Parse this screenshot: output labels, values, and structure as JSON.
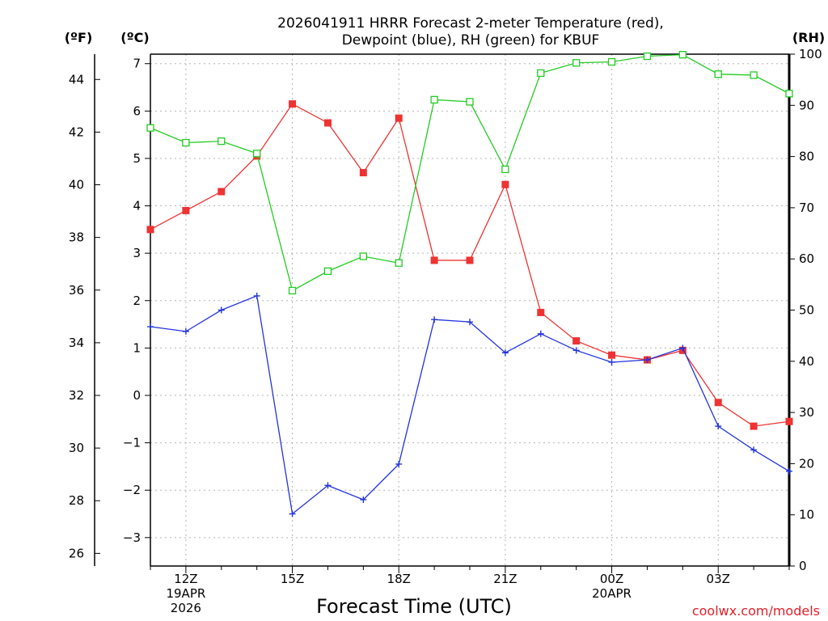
{
  "chart_data": {
    "type": "line",
    "title_line1": "2026041911 HRRR Forecast 2-meter Temperature (red),",
    "title_line2": "Dewpoint (blue), RH (green) for KBUF",
    "xlabel": "Forecast Time (UTC)",
    "credit": "coolwx.com/models",
    "y_left_f": {
      "unit": "(ºF)",
      "ylim": [
        25.52,
        44.96
      ],
      "ticks": [
        26,
        28,
        30,
        32,
        34,
        36,
        38,
        40,
        42,
        44
      ]
    },
    "y_left_c": {
      "unit": "(ºC)",
      "ylim": [
        -3.6,
        7.2
      ],
      "ticks": [
        -3,
        -2,
        -1,
        0,
        1,
        2,
        3,
        4,
        5,
        6,
        7
      ]
    },
    "y_right_rh": {
      "unit": "(RH)",
      "ylim": [
        0,
        100
      ],
      "ticks": [
        0,
        10,
        20,
        30,
        40,
        50,
        60,
        70,
        80,
        90,
        100
      ]
    },
    "x_hours": [
      11,
      12,
      13,
      14,
      15,
      16,
      17,
      18,
      19,
      20,
      21,
      22,
      23,
      24,
      25,
      26,
      27,
      28,
      29
    ],
    "x_ticks": [
      {
        "hour": 12,
        "lines": [
          "12Z",
          "19APR",
          "2026"
        ]
      },
      {
        "hour": 15,
        "lines": [
          "15Z"
        ]
      },
      {
        "hour": 18,
        "lines": [
          "18Z"
        ]
      },
      {
        "hour": 21,
        "lines": [
          "21Z"
        ]
      },
      {
        "hour": 24,
        "lines": [
          "00Z",
          "20APR"
        ]
      },
      {
        "hour": 27,
        "lines": [
          "03Z"
        ]
      }
    ],
    "series": [
      {
        "key": "temperature",
        "color": "#ee3333",
        "marker": "filled-square",
        "values": [
          3.5,
          3.9,
          4.3,
          5.05,
          6.15,
          5.75,
          4.7,
          5.85,
          2.85,
          2.85,
          4.45,
          1.75,
          1.15,
          0.85,
          0.75,
          0.95,
          -0.15,
          -0.65,
          -0.55
        ]
      },
      {
        "key": "dewpoint",
        "color": "#2233dd",
        "marker": "plus",
        "values": [
          1.45,
          1.35,
          1.8,
          2.1,
          -2.5,
          -1.9,
          -2.2,
          -1.45,
          1.6,
          1.55,
          0.9,
          1.3,
          0.95,
          0.7,
          0.75,
          1.0,
          -0.65,
          -1.15,
          -1.6
        ]
      },
      {
        "key": "rh",
        "color": "#22cc22",
        "marker": "open-square",
        "values": [
          85.6,
          82.7,
          83.0,
          80.6,
          53.8,
          57.6,
          60.5,
          59.2,
          91.1,
          90.7,
          77.5,
          96.3,
          98.3,
          98.5,
          99.6,
          99.9,
          96.1,
          95.9,
          92.3
        ]
      }
    ]
  }
}
